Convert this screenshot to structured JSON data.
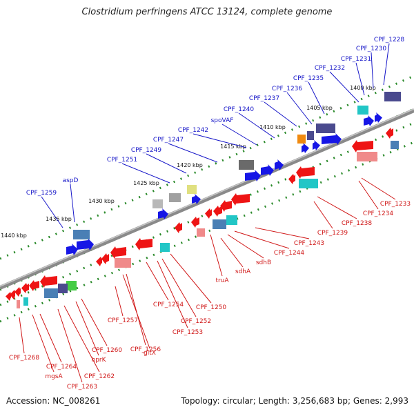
{
  "title": "Clostridium perfringens ATCC 13124, complete genome",
  "footer": {
    "accession": "Accession: NC_008261",
    "summary": "Topology: circular; Length: 3,256,683 bp; Genes: 2,993"
  },
  "colors": {
    "top_label": "#1515c8",
    "bottom_label": "#d01818",
    "backbone": "#808080",
    "track_dots": "#2a8a2a"
  },
  "ticks": [
    "1400 kbp",
    "1405 kbp",
    "1410 kbp",
    "1415 kbp",
    "1420 kbp",
    "1425 kbp",
    "1430 kbp",
    "1435 kbp",
    "1440 kbp"
  ],
  "top_labels": [
    "CPF_1228",
    "CPF_1230",
    "CPF_1231",
    "CPF_1232",
    "CPF_1235",
    "CPF_1236",
    "CPF_1237",
    "CPF_1240",
    "spoVAF",
    "CPF_1242",
    "CPF_1247",
    "CPF_1249",
    "CPF_1251",
    "aspD",
    "CPF_1259"
  ],
  "bottom_labels": [
    "CPF_1233",
    "CPF_1234",
    "CPF_1238",
    "CPF_1239",
    "CPF_1243",
    "CPF_1244",
    "sdhB",
    "sdhA",
    "truA",
    "CPF_1250",
    "CPF_1254",
    "CPF_1252",
    "CPF_1253",
    "CPF_1257",
    "gltX",
    "CPF_1256",
    "CPF_1260",
    "hprK",
    "CPF_1262",
    "CPF_1263",
    "CPF_1264",
    "mgsA",
    "CPF_1268"
  ]
}
